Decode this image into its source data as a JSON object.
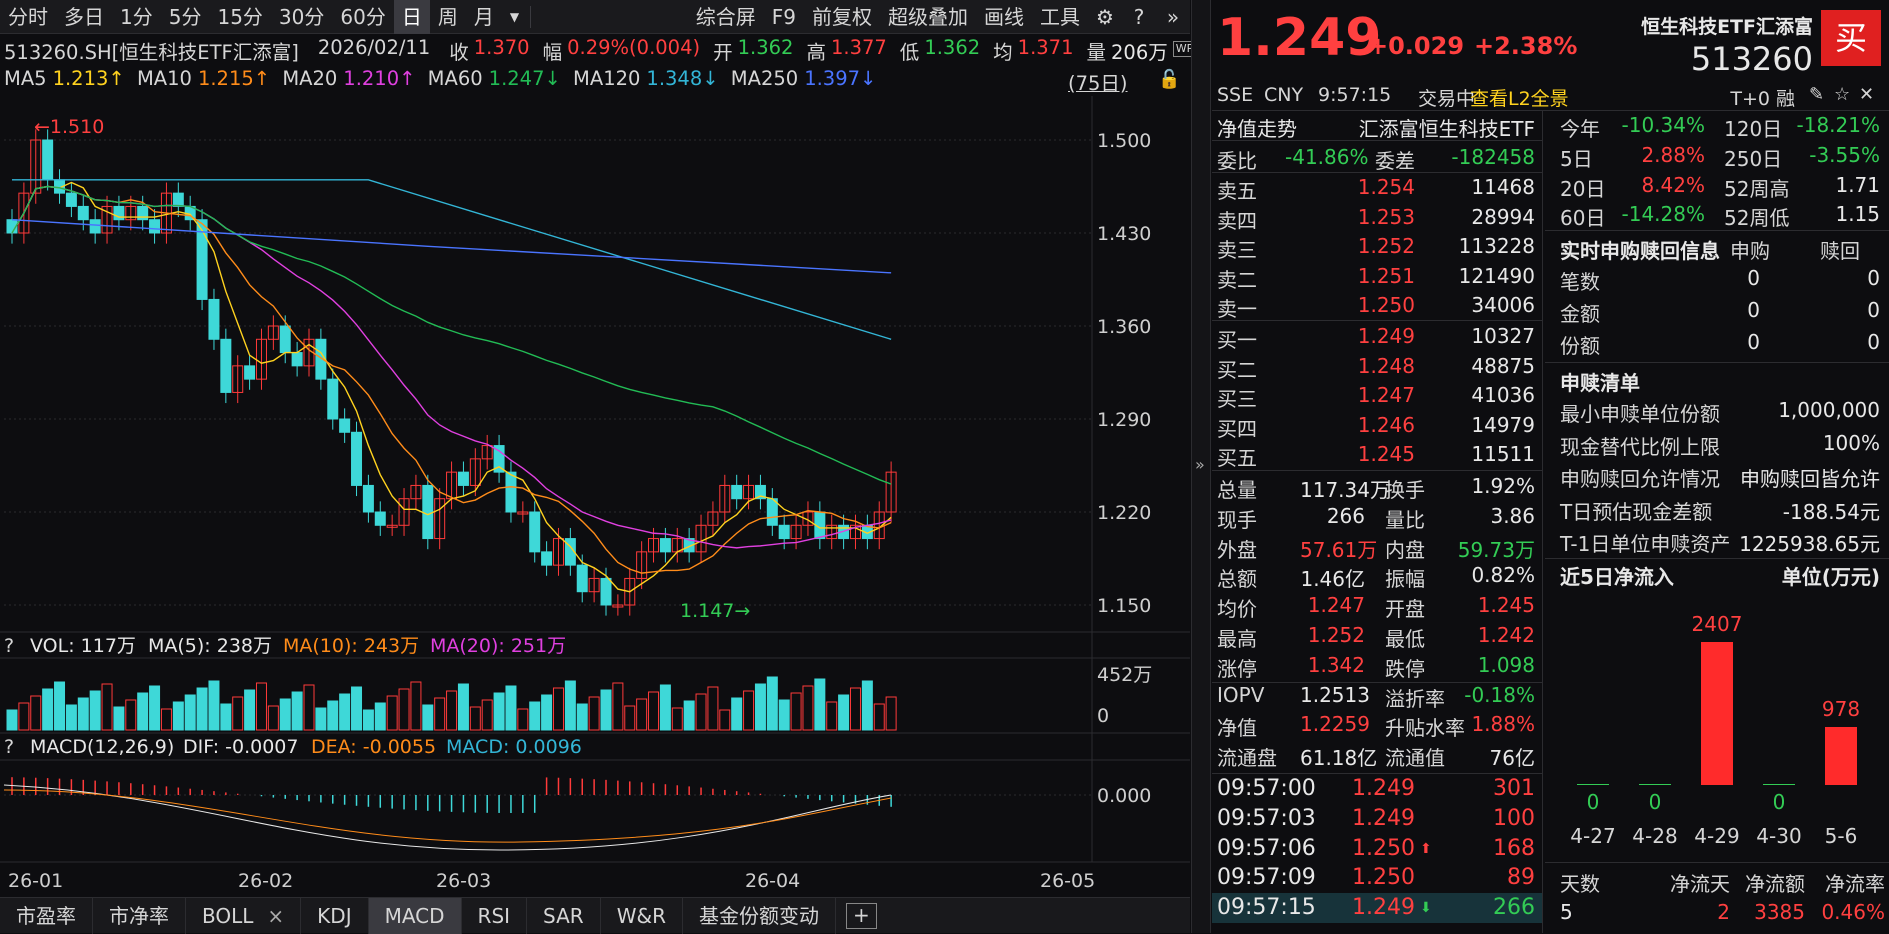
{
  "toolbar": {
    "items": [
      "分时",
      "多日",
      "1分",
      "5分",
      "15分",
      "30分",
      "60分",
      "日",
      "周",
      "月"
    ],
    "active": "日",
    "right": [
      "综合屏",
      "F9",
      "前复权",
      "超级叠加",
      "画线",
      "工具"
    ]
  },
  "info": {
    "code": "513260.SH[恒生科技ETF汇添富]",
    "date": "2026/02/11",
    "close_label": "收",
    "close": "1.370",
    "range_label": "幅",
    "range": "0.29%(0.004)",
    "open_label": "开",
    "open": "1.362",
    "high_label": "高",
    "high": "1.377",
    "low_label": "低",
    "low": "1.362",
    "avg_label": "均",
    "avg": "1.371",
    "vol_label": "量",
    "vol": "206万",
    "wp": "WP"
  },
  "ma": {
    "ma5": "MA5",
    "ma5v": "1.213↑",
    "ma10": "MA10",
    "ma10v": "1.215↑",
    "ma20": "MA20",
    "ma20v": "1.210↑",
    "ma60": "MA60",
    "ma60v": "1.247↓",
    "ma120": "MA120",
    "ma120v": "1.348↓",
    "ma250": "MA250",
    "ma250v": "1.397↓",
    "period": "(75日)"
  },
  "price_axis": [
    "1.500",
    "1.430",
    "1.360",
    "1.290",
    "1.220",
    "1.150"
  ],
  "price_hi": "←1.510",
  "price_lo": "1.147→",
  "vol": {
    "help": "?",
    "label": "VOL: 117万",
    "ma5": "MA(5): 238万",
    "ma10": "MA(10): 243万",
    "ma20": "MA(20): 251万",
    "axis_top": "452万",
    "axis_bot": "0"
  },
  "macd": {
    "help": "?",
    "label": "MACD(12,26,9)",
    "dif": "DIF: -0.0007",
    "dea": "DEA: -0.0055",
    "macd": "MACD: 0.0096",
    "axis": "0.000"
  },
  "dates": [
    "26-01",
    "26-02",
    "26-03",
    "26-04",
    "26-05"
  ],
  "bottom_tabs": [
    "市盈率",
    "市净率",
    "BOLL",
    "KDJ",
    "MACD",
    "RSI",
    "SAR",
    "W&R",
    "基金份额变动"
  ],
  "bottom_active": "MACD",
  "boll_close": "×",
  "add_tab": "+",
  "quote": {
    "price": "1.249",
    "change": "+0.029",
    "pct": "+2.38%",
    "name": "恒生科技ETF汇添富",
    "code": "513260",
    "buy": "买",
    "exchange": "SSE",
    "currency": "CNY",
    "time": "9:57:15",
    "status": "交易中",
    "l2": "查看L2全景",
    "t0": "T+0 融"
  },
  "nav": {
    "label": "净值走势",
    "fund": "汇添富恒生科技ETF"
  },
  "ratio": {
    "wb_label": "委比",
    "wb": "-41.86%",
    "wc_label": "委差",
    "wc": "-182458"
  },
  "asks": [
    {
      "l": "卖五",
      "p": "1.254",
      "v": "11468"
    },
    {
      "l": "卖四",
      "p": "1.253",
      "v": "28994"
    },
    {
      "l": "卖三",
      "p": "1.252",
      "v": "113228"
    },
    {
      "l": "卖二",
      "p": "1.251",
      "v": "121490"
    },
    {
      "l": "卖一",
      "p": "1.250",
      "v": "34006"
    }
  ],
  "bids": [
    {
      "l": "买一",
      "p": "1.249",
      "v": "10327"
    },
    {
      "l": "买二",
      "p": "1.248",
      "v": "48875"
    },
    {
      "l": "买三",
      "p": "1.247",
      "v": "41036"
    },
    {
      "l": "买四",
      "p": "1.246",
      "v": "14979"
    },
    {
      "l": "买五",
      "p": "1.245",
      "v": "11511"
    }
  ],
  "stats": [
    [
      "总量",
      "117.34万",
      "换手",
      "1.92%"
    ],
    [
      "现手",
      "266",
      "量比",
      "3.86"
    ],
    [
      "外盘",
      "57.61万",
      "内盘",
      "59.73万"
    ],
    [
      "总额",
      "1.46亿",
      "振幅",
      "0.82%"
    ],
    [
      "均价",
      "1.247",
      "开盘",
      "1.245"
    ],
    [
      "最高",
      "1.252",
      "最低",
      "1.242"
    ],
    [
      "涨停",
      "1.342",
      "跌停",
      "1.098"
    ],
    [
      "IOPV",
      "1.2513",
      "溢折率",
      "-0.18%"
    ],
    [
      "净值",
      "1.2259",
      "升贴水率",
      "1.88%"
    ],
    [
      "流通盘",
      "61.18亿",
      "流通值",
      "76亿"
    ]
  ],
  "ticks": [
    [
      "09:57:00",
      "1.249",
      "301",
      ""
    ],
    [
      "09:57:03",
      "1.249",
      "100",
      ""
    ],
    [
      "09:57:06",
      "1.250",
      "168",
      "up"
    ],
    [
      "09:57:09",
      "1.250",
      "89",
      ""
    ],
    [
      "09:57:15",
      "1.249",
      "266",
      "down"
    ]
  ],
  "perf": [
    [
      "今年",
      "-10.34%",
      "120日",
      "-18.21%"
    ],
    [
      "5日",
      "2.88%",
      "250日",
      "-3.55%"
    ],
    [
      "20日",
      "8.42%",
      "52周高",
      "1.71"
    ],
    [
      "60日",
      "-14.28%",
      "52周低",
      "1.15"
    ]
  ],
  "subscribe": {
    "title": "实时申购赎回信息",
    "c1": "申购",
    "c2": "赎回",
    "rows": [
      [
        "笔数",
        "0",
        "0"
      ],
      [
        "金额",
        "0",
        "0"
      ],
      [
        "份额",
        "0",
        "0"
      ]
    ]
  },
  "list": {
    "title": "申赎清单",
    "rows": [
      [
        "最小申赎单位份额",
        "1,000,000"
      ],
      [
        "现金替代比例上限",
        "100%"
      ],
      [
        "申购赎回允许情况",
        "申购赎回皆允许"
      ],
      [
        "T日预估现金差额",
        "-188.54元"
      ],
      [
        "T-1日单位申赎资产",
        "1225938.65元"
      ]
    ]
  },
  "flow": {
    "title": "近5日净流入",
    "unit": "单位(万元)",
    "dates": [
      "4-27",
      "4-28",
      "4-29",
      "4-30",
      "5-6"
    ],
    "values": [
      0,
      0,
      2407,
      0,
      978
    ]
  },
  "flow_table": {
    "h": [
      "天数",
      "净流天",
      "净流额",
      "净流率"
    ],
    "v": [
      "5",
      "2",
      "3385",
      "0.46%"
    ]
  }
}
